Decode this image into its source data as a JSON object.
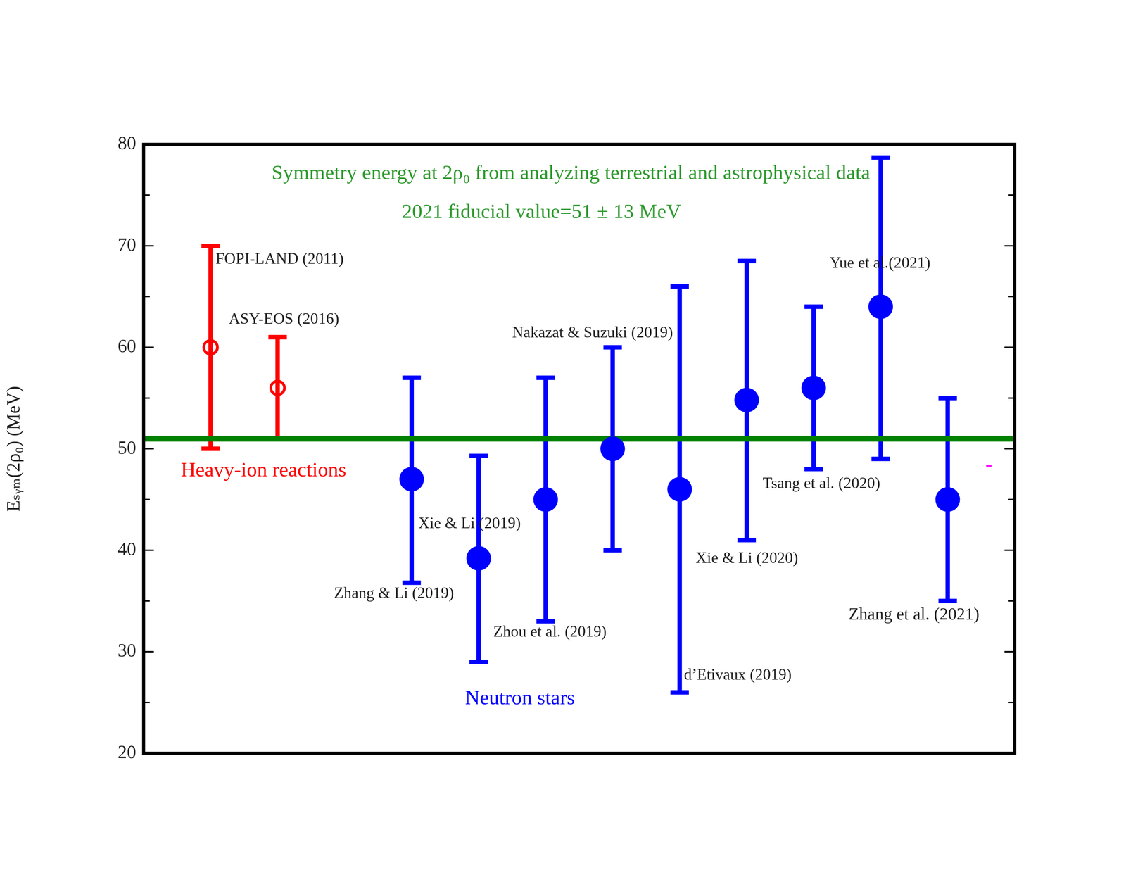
{
  "chart_data": {
    "type": "scatter",
    "title": [
      "Symmetry energy at 2ρ₀ from analyzing terrestrial and astrophysical data",
      "2021 fiducial value=51 ± 13 MeV"
    ],
    "y_label": "Eₛᵧₘ(2ρ₀) (MeV)",
    "xlim": [
      0,
      13
    ],
    "ylim": [
      20,
      80
    ],
    "yticks": [
      20,
      30,
      40,
      50,
      60,
      70,
      80
    ],
    "grid": false,
    "tick_labels": "y",
    "reference_line": {
      "value": 51,
      "color": "#008000"
    },
    "series": [
      {
        "name": "Heavy-ion reactions",
        "color": "#ff0000",
        "marker": "open_circle",
        "x": [
          1,
          2
        ],
        "values": [
          60,
          56
        ],
        "y_low": [
          50,
          51
        ],
        "y_high": [
          70,
          61
        ],
        "labels": [
          "FOPI-LAND (2011)",
          "ASY-EOS (2016)"
        ]
      },
      {
        "name": "Neutron stars",
        "color": "#0000ff",
        "marker": "circle",
        "x": [
          4,
          5,
          6,
          7,
          8,
          9,
          10,
          11,
          12
        ],
        "values": [
          47,
          39.2,
          45,
          50,
          46,
          54.8,
          56,
          64,
          45
        ],
        "y_low": [
          36.8,
          29,
          33,
          40,
          26,
          41,
          48,
          49,
          35
        ],
        "y_high": [
          57,
          49.3,
          57,
          60,
          66,
          68.5,
          64,
          78.7,
          55
        ],
        "labels": [
          "Zhang & Li (2019)",
          "Xie & Li (2019)",
          "Zhou et al. (2019)",
          "Nakazat & Suzuki (2019)",
          "d’Etivaux (2019)",
          "Xie & Li (2020)",
          "Tsang et al. (2020)",
          "Yue et al.(2021)",
          "Zhang et al. (2021)"
        ]
      }
    ],
    "annotations": [
      {
        "text": "-",
        "color": "#ff00ff"
      }
    ],
    "legend": false
  }
}
